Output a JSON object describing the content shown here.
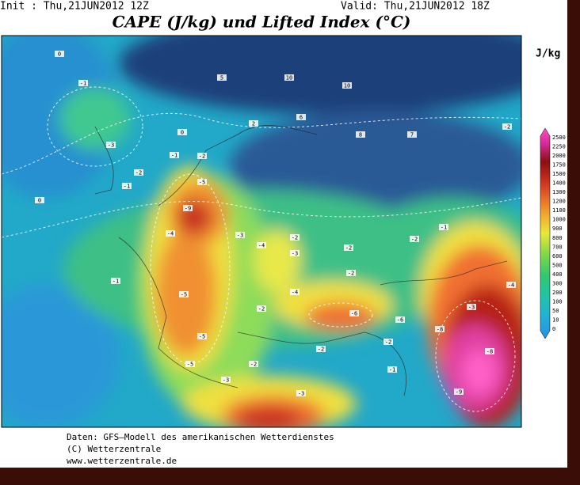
{
  "header": {
    "init": "Init : Thu,21JUN2012 12Z",
    "valid": "Valid: Thu,21JUN2012 18Z",
    "title": "CAPE (J/kg) und Lifted Index (°C)"
  },
  "legend": {
    "unit": "J/kg",
    "labels": [
      "2500",
      "2250",
      "2000",
      "1750",
      "1500",
      "1400",
      "1300",
      "1200",
      "1100",
      "1000",
      "900",
      "800",
      "700",
      "600",
      "500",
      "400",
      "300",
      "200",
      "100",
      "50",
      "10",
      "0"
    ]
  },
  "map": {
    "lifted_index_labels": [
      "0",
      "-1",
      "-3",
      "-2",
      "-1",
      "-1",
      "-2",
      "-5",
      "-9",
      "-3",
      "-4",
      "-2",
      "-3",
      "-2",
      "-2",
      "-2",
      "-1",
      "-5",
      "-5",
      "-5",
      "-2",
      "-4",
      "-6",
      "-6",
      "-8",
      "-8",
      "-9",
      "-1",
      "0",
      "-3",
      "-3",
      "-2",
      "-1",
      "-2",
      "-2",
      "10",
      "10",
      "5",
      "6",
      "8",
      "7",
      "-2",
      "0",
      "2",
      "-4",
      "-3",
      "-4"
    ]
  },
  "footer": {
    "line1": "Daten: GFS–Modell des amerikanischen Wetterdienstes",
    "line2": "(C) Wetterzentrale",
    "line3": "www.wetterzentrale.de"
  }
}
